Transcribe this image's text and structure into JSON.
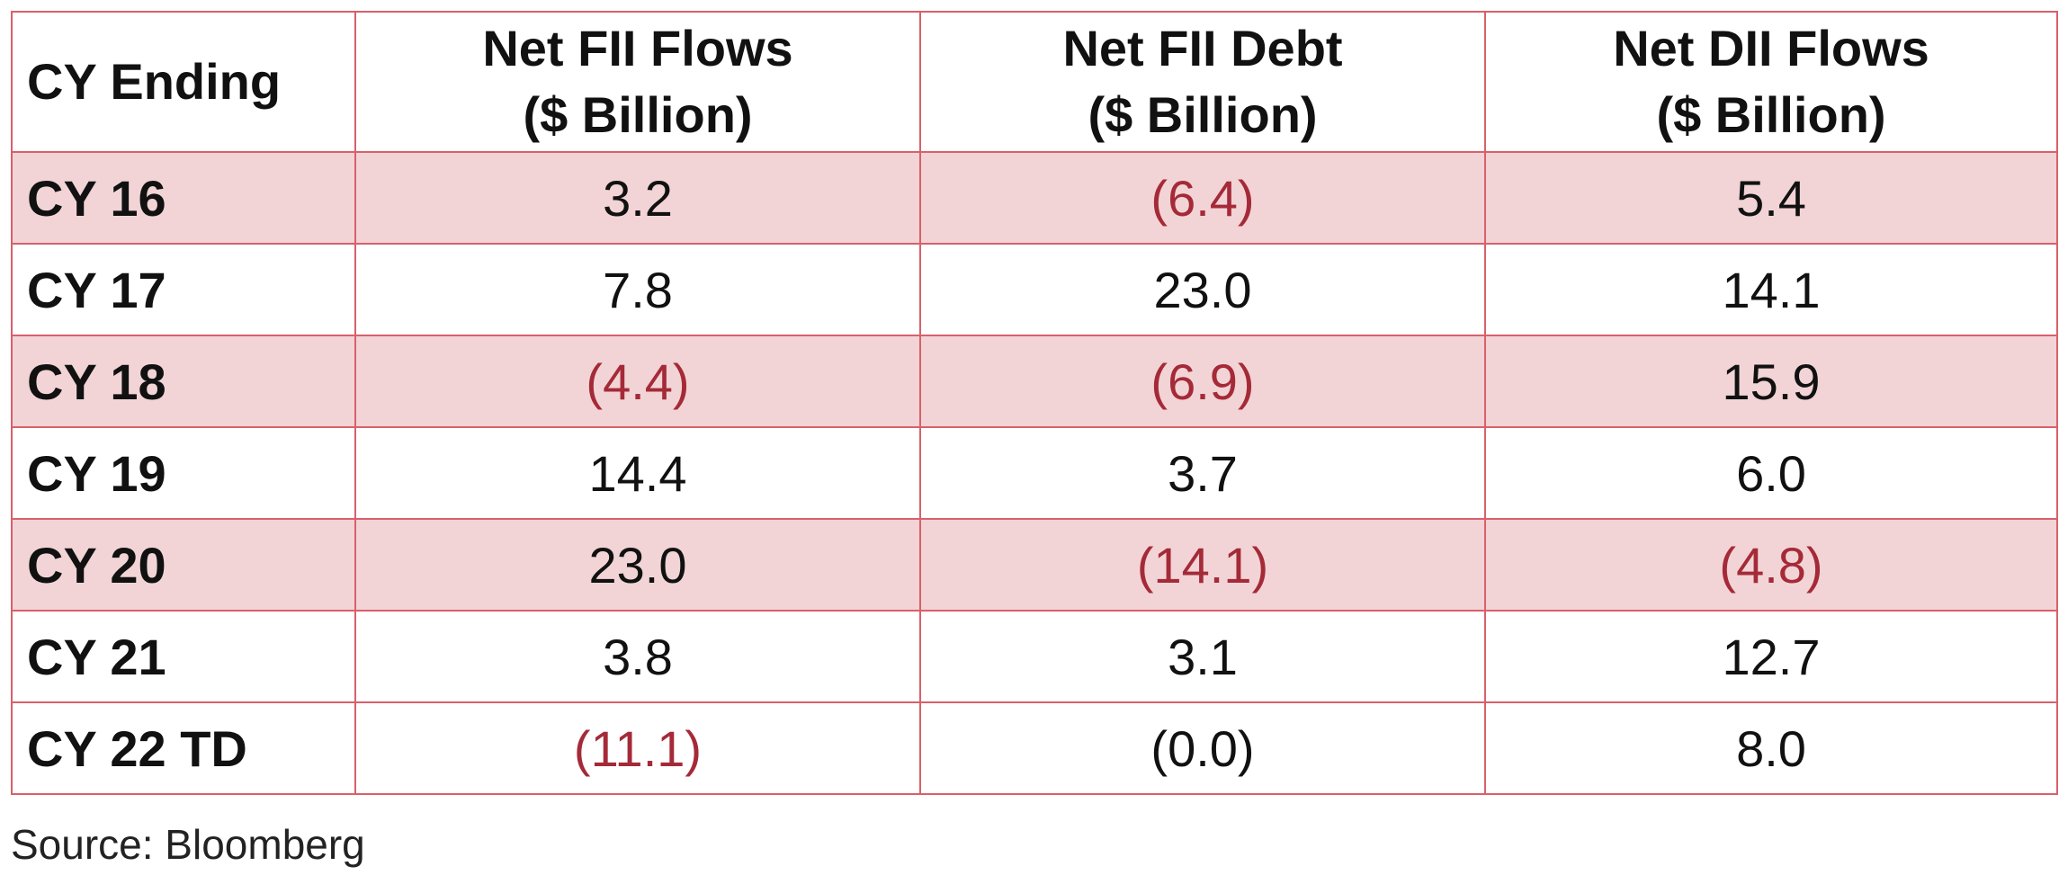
{
  "table": {
    "headers": [
      {
        "line1": "CY Ending",
        "line2": ""
      },
      {
        "line1": "Net FII Flows",
        "line2": "($ Billion)"
      },
      {
        "line1": "Net FII Debt",
        "line2": "($ Billion)"
      },
      {
        "line1": "Net DII Flows",
        "line2": "($ Billion)"
      }
    ],
    "rows": [
      {
        "year": "CY 16",
        "fii_flows": "3.2",
        "fii_debt": "(6.4)",
        "dii_flows": "5.4"
      },
      {
        "year": "CY 17",
        "fii_flows": "7.8",
        "fii_debt": "23.0",
        "dii_flows": "14.1"
      },
      {
        "year": "CY 18",
        "fii_flows": "(4.4)",
        "fii_debt": "(6.9)",
        "dii_flows": "15.9"
      },
      {
        "year": "CY 19",
        "fii_flows": "14.4",
        "fii_debt": "3.7",
        "dii_flows": "6.0"
      },
      {
        "year": "CY 20",
        "fii_flows": "23.0",
        "fii_debt": "(14.1)",
        "dii_flows": "(4.8)"
      },
      {
        "year": "CY 21",
        "fii_flows": "3.8",
        "fii_debt": "3.1",
        "dii_flows": "12.7"
      },
      {
        "year": "CY 22 TD",
        "fii_flows": "(11.1)",
        "fii_debt": "(0.0)",
        "dii_flows": "8.0"
      }
    ]
  },
  "source": "Source: Bloomberg",
  "colors": {
    "border": "#d9606a",
    "shaded_row": "#f2d4d6",
    "negative_text": "#a52a38",
    "text": "#111111"
  }
}
